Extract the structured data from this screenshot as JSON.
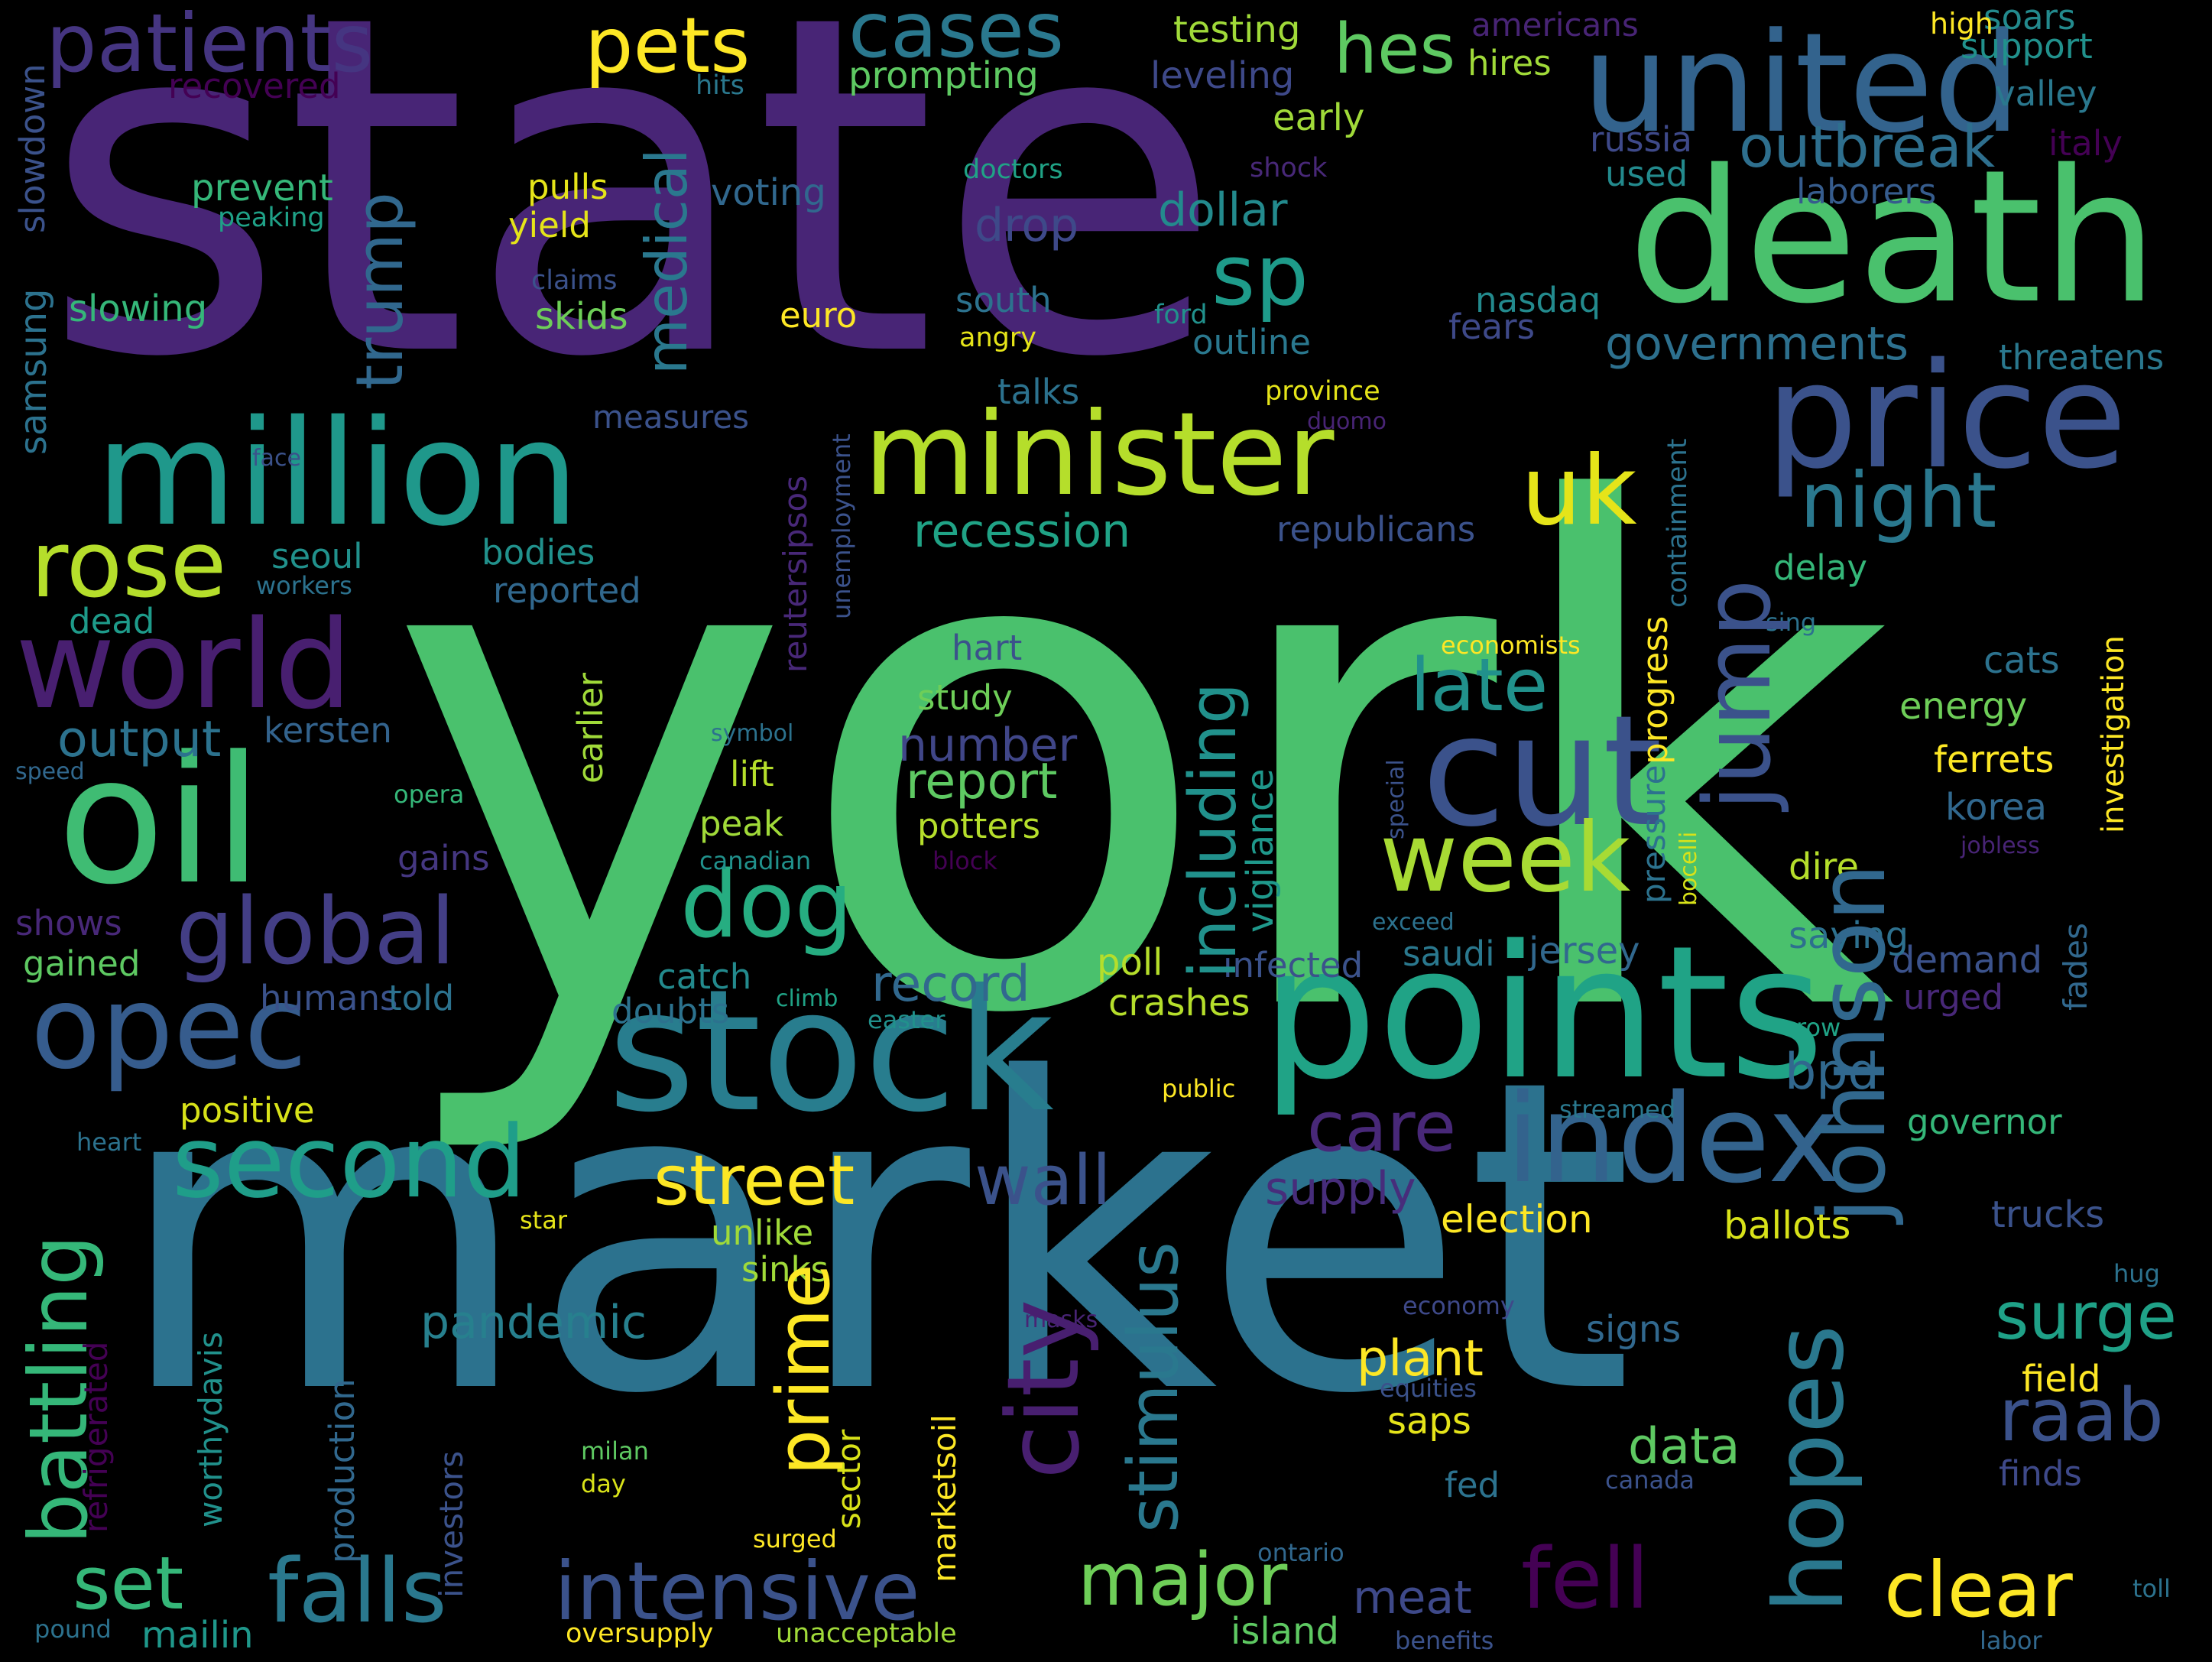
{
  "words": [
    {
      "text": "state",
      "color": "#482576",
      "vertical": false
    },
    {
      "text": "york",
      "color": "#4ac16d",
      "vertical": false
    },
    {
      "text": "market",
      "color": "#2c728e",
      "vertical": false
    },
    {
      "text": "death",
      "color": "#4ac16d",
      "vertical": false
    },
    {
      "text": "united",
      "color": "#33638d",
      "vertical": false
    },
    {
      "text": "price",
      "color": "#3b528b",
      "vertical": false
    },
    {
      "text": "points",
      "color": "#20a386",
      "vertical": false
    },
    {
      "text": "stock",
      "color": "#287d8e",
      "vertical": false
    },
    {
      "text": "million",
      "color": "#1f988b",
      "vertical": false
    },
    {
      "text": "minister",
      "color": "#b5de2b",
      "vertical": false
    },
    {
      "text": "oil",
      "color": "#3fbc73",
      "vertical": false
    },
    {
      "text": "cut",
      "color": "#3b528b",
      "vertical": false
    },
    {
      "text": "index",
      "color": "#33638d",
      "vertical": false
    },
    {
      "text": "second",
      "color": "#1f9e89",
      "vertical": false
    },
    {
      "text": "world",
      "color": "#481f70",
      "vertical": false
    },
    {
      "text": "opec",
      "color": "#365c8d",
      "vertical": false
    },
    {
      "text": "global",
      "color": "#433e85",
      "vertical": false
    },
    {
      "text": "dog",
      "color": "#26ad81",
      "vertical": false
    },
    {
      "text": "rose",
      "color": "#b5de2b",
      "vertical": false
    },
    {
      "text": "patients",
      "color": "#453581",
      "vertical": false
    },
    {
      "text": "pets",
      "color": "#fde725",
      "vertical": false
    },
    {
      "text": "cases",
      "color": "#2a788e",
      "vertical": false
    },
    {
      "text": "hes",
      "color": "#5ec962",
      "vertical": false
    },
    {
      "text": "sp",
      "color": "#1e9b8a",
      "vertical": false
    },
    {
      "text": "uk",
      "color": "#e5e419",
      "vertical": false
    },
    {
      "text": "night",
      "color": "#2a788e",
      "vertical": false
    },
    {
      "text": "outbreak",
      "color": "#2e6f8e",
      "vertical": false
    },
    {
      "text": "week",
      "color": "#a8db34",
      "vertical": false
    },
    {
      "text": "late",
      "color": "#21918c",
      "vertical": false
    },
    {
      "text": "street",
      "color": "#fde725",
      "vertical": false
    },
    {
      "text": "wall",
      "color": "#3b528b",
      "vertical": false
    },
    {
      "text": "care",
      "color": "#482878",
      "vertical": false
    },
    {
      "text": "fell",
      "color": "#440154",
      "vertical": false
    },
    {
      "text": "falls",
      "color": "#2a788e",
      "vertical": false
    },
    {
      "text": "intensive",
      "color": "#3b528b",
      "vertical": false
    },
    {
      "text": "major",
      "color": "#6ece58",
      "vertical": false
    },
    {
      "text": "clear",
      "color": "#fde725",
      "vertical": false
    },
    {
      "text": "set",
      "color": "#35b779",
      "vertical": false
    },
    {
      "text": "surge",
      "color": "#1fa187",
      "vertical": false
    },
    {
      "text": "raab",
      "color": "#3b528b",
      "vertical": false
    },
    {
      "text": "report",
      "color": "#5ec962",
      "vertical": false
    },
    {
      "text": "record",
      "color": "#31688e",
      "vertical": false
    },
    {
      "text": "number",
      "color": "#404688",
      "vertical": false
    },
    {
      "text": "recession",
      "color": "#20a386",
      "vertical": false
    },
    {
      "text": "dollar",
      "color": "#238a8d",
      "vertical": false
    },
    {
      "text": "drop",
      "color": "#3e4989",
      "vertical": false
    },
    {
      "text": "governments",
      "color": "#2d708e",
      "vertical": false
    },
    {
      "text": "output",
      "color": "#2c728e",
      "vertical": false
    },
    {
      "text": "pandemic",
      "color": "#27808e",
      "vertical": false
    },
    {
      "text": "plant",
      "color": "#fde725",
      "vertical": false
    },
    {
      "text": "data",
      "color": "#5ec962",
      "vertical": false
    },
    {
      "text": "supply",
      "color": "#472d7b",
      "vertical": false
    },
    {
      "text": "meat",
      "color": "#3e4989",
      "vertical": false
    },
    {
      "text": "bpd",
      "color": "#31688e",
      "vertical": false
    },
    {
      "text": "mailin",
      "color": "#1f988b",
      "vertical": false
    },
    {
      "text": "unlike",
      "color": "#a0da39",
      "vertical": false
    },
    {
      "text": "sinks",
      "color": "#a0da39",
      "vertical": false
    },
    {
      "text": "election",
      "color": "#fde725",
      "vertical": false
    },
    {
      "text": "ballots",
      "color": "#d8e219",
      "vertical": false
    },
    {
      "text": "trucks",
      "color": "#3b528b",
      "vertical": false
    },
    {
      "text": "field",
      "color": "#fde725",
      "vertical": false
    },
    {
      "text": "signs",
      "color": "#31688e",
      "vertical": false
    },
    {
      "text": "saps",
      "color": "#e5e419",
      "vertical": false
    },
    {
      "text": "fed",
      "color": "#2c728e",
      "vertical": false
    },
    {
      "text": "island",
      "color": "#5ec962",
      "vertical": false
    },
    {
      "text": "finds",
      "color": "#3e4989",
      "vertical": false
    },
    {
      "text": "crashes",
      "color": "#b5de2b",
      "vertical": false
    },
    {
      "text": "poll",
      "color": "#b5de2b",
      "vertical": false
    },
    {
      "text": "infected",
      "color": "#3b528b",
      "vertical": false
    },
    {
      "text": "saudi",
      "color": "#2a788e",
      "vertical": false
    },
    {
      "text": "jersey",
      "color": "#31688e",
      "vertical": false
    },
    {
      "text": "demand",
      "color": "#3b528b",
      "vertical": false
    },
    {
      "text": "urged",
      "color": "#482878",
      "vertical": false
    },
    {
      "text": "saying",
      "color": "#2d708e",
      "vertical": false
    },
    {
      "text": "governor",
      "color": "#35b779",
      "vertical": false
    },
    {
      "text": "dire",
      "color": "#b5de2b",
      "vertical": false
    },
    {
      "text": "korea",
      "color": "#31688e",
      "vertical": false
    },
    {
      "text": "ferrets",
      "color": "#fde725",
      "vertical": false
    },
    {
      "text": "energy",
      "color": "#6ece58",
      "vertical": false
    },
    {
      "text": "cats",
      "color": "#2c728e",
      "vertical": false
    },
    {
      "text": "delay",
      "color": "#35b779",
      "vertical": false
    },
    {
      "text": "threatens",
      "color": "#2a788e",
      "vertical": false
    },
    {
      "text": "valley",
      "color": "#2a788e",
      "vertical": false
    },
    {
      "text": "italy",
      "color": "#440154",
      "vertical": false
    },
    {
      "text": "support",
      "color": "#21918c",
      "vertical": false
    },
    {
      "text": "soars",
      "color": "#238a8d",
      "vertical": false
    },
    {
      "text": "high",
      "color": "#fde725",
      "vertical": false
    },
    {
      "text": "laborers",
      "color": "#365c8d",
      "vertical": false
    },
    {
      "text": "used",
      "color": "#238a8d",
      "vertical": false
    },
    {
      "text": "russia",
      "color": "#3e4989",
      "vertical": false
    },
    {
      "text": "hires",
      "color": "#a0da39",
      "vertical": false
    },
    {
      "text": "americans",
      "color": "#482475",
      "vertical": false
    },
    {
      "text": "testing",
      "color": "#a0da39",
      "vertical": false
    },
    {
      "text": "leveling",
      "color": "#3e4989",
      "vertical": false
    },
    {
      "text": "prompting",
      "color": "#5ec962",
      "vertical": false
    },
    {
      "text": "early",
      "color": "#a0da39",
      "vertical": false
    },
    {
      "text": "hits",
      "color": "#2a788e",
      "vertical": false
    },
    {
      "text": "recovered",
      "color": "#440154",
      "vertical": false
    },
    {
      "text": "prevent",
      "color": "#35b779",
      "vertical": false
    },
    {
      "text": "peaking",
      "color": "#1fa187",
      "vertical": false
    },
    {
      "text": "pulls",
      "color": "#e5e419",
      "vertical": false
    },
    {
      "text": "yield",
      "color": "#e5e419",
      "vertical": false
    },
    {
      "text": "voting",
      "color": "#31688e",
      "vertical": false
    },
    {
      "text": "doctors",
      "color": "#20a386",
      "vertical": false
    },
    {
      "text": "shock",
      "color": "#482878",
      "vertical": false
    },
    {
      "text": "claims",
      "color": "#3b528b",
      "vertical": false
    },
    {
      "text": "skids",
      "color": "#6ece58",
      "vertical": false
    },
    {
      "text": "euro",
      "color": "#fde725",
      "vertical": false
    },
    {
      "text": "south",
      "color": "#2c728e",
      "vertical": false
    },
    {
      "text": "ford",
      "color": "#21918c",
      "vertical": false
    },
    {
      "text": "angry",
      "color": "#e5e419",
      "vertical": false
    },
    {
      "text": "nasdaq",
      "color": "#238a8d",
      "vertical": false
    },
    {
      "text": "fears",
      "color": "#3e4989",
      "vertical": false
    },
    {
      "text": "outline",
      "color": "#2a788e",
      "vertical": false
    },
    {
      "text": "slowing",
      "color": "#35b779",
      "vertical": false
    },
    {
      "text": "talks",
      "color": "#2c728e",
      "vertical": false
    },
    {
      "text": "province",
      "color": "#e5e419",
      "vertical": false
    },
    {
      "text": "duomo",
      "color": "#482475",
      "vertical": false
    },
    {
      "text": "measures",
      "color": "#3b528b",
      "vertical": false
    },
    {
      "text": "face",
      "color": "#3b528b",
      "vertical": false
    },
    {
      "text": "seoul",
      "color": "#21918c",
      "vertical": false
    },
    {
      "text": "bodies",
      "color": "#21918c",
      "vertical": false
    },
    {
      "text": "reported",
      "color": "#31688e",
      "vertical": false
    },
    {
      "text": "workers",
      "color": "#2c728e",
      "vertical": false
    },
    {
      "text": "dead",
      "color": "#1e9b8a",
      "vertical": false
    },
    {
      "text": "republicans",
      "color": "#3b528b",
      "vertical": false
    },
    {
      "text": "economists",
      "color": "#fde725",
      "vertical": false
    },
    {
      "text": "sing",
      "color": "#2c728e",
      "vertical": false
    },
    {
      "text": "hart",
      "color": "#3b528b",
      "vertical": false
    },
    {
      "text": "study",
      "color": "#6ece58",
      "vertical": false
    },
    {
      "text": "kersten",
      "color": "#33638d",
      "vertical": false
    },
    {
      "text": "symbol",
      "color": "#2c728e",
      "vertical": false
    },
    {
      "text": "lift",
      "color": "#b5de2b",
      "vertical": false
    },
    {
      "text": "speed",
      "color": "#31688e",
      "vertical": false
    },
    {
      "text": "opera",
      "color": "#35b779",
      "vertical": false
    },
    {
      "text": "peak",
      "color": "#a0da39",
      "vertical": false
    },
    {
      "text": "potters",
      "color": "#b5de2b",
      "vertical": false
    },
    {
      "text": "canadian",
      "color": "#21918c",
      "vertical": false
    },
    {
      "text": "block",
      "color": "#440154",
      "vertical": false
    },
    {
      "text": "gains",
      "color": "#453781",
      "vertical": false
    },
    {
      "text": "shows",
      "color": "#482878",
      "vertical": false
    },
    {
      "text": "gained",
      "color": "#5ec962",
      "vertical": false
    },
    {
      "text": "catch",
      "color": "#238a8d",
      "vertical": false
    },
    {
      "text": "doubts",
      "color": "#2c728e",
      "vertical": false
    },
    {
      "text": "climb",
      "color": "#20a386",
      "vertical": false
    },
    {
      "text": "easter",
      "color": "#21918c",
      "vertical": false
    },
    {
      "text": "humans",
      "color": "#3b528b",
      "vertical": false
    },
    {
      "text": "told",
      "color": "#2c728e",
      "vertical": false
    },
    {
      "text": "positive",
      "color": "#d8e219",
      "vertical": false
    },
    {
      "text": "heart",
      "color": "#2c728e",
      "vertical": false
    },
    {
      "text": "public",
      "color": "#fde725",
      "vertical": false
    },
    {
      "text": "streamed",
      "color": "#2a788e",
      "vertical": false
    },
    {
      "text": "exceed",
      "color": "#2c728e",
      "vertical": false
    },
    {
      "text": "jobless",
      "color": "#482475",
      "vertical": false
    },
    {
      "text": "row",
      "color": "#20a386",
      "vertical": false
    },
    {
      "text": "star",
      "color": "#e5e419",
      "vertical": false
    },
    {
      "text": "economy",
      "color": "#3e4989",
      "vertical": false
    },
    {
      "text": "masks",
      "color": "#482475",
      "vertical": false
    },
    {
      "text": "equities",
      "color": "#3b528b",
      "vertical": false
    },
    {
      "text": "hug",
      "color": "#2c728e",
      "vertical": false
    },
    {
      "text": "milan",
      "color": "#5ec962",
      "vertical": false
    },
    {
      "text": "day",
      "color": "#d8e219",
      "vertical": false
    },
    {
      "text": "canada",
      "color": "#3b528b",
      "vertical": false
    },
    {
      "text": "surged",
      "color": "#fde725",
      "vertical": false
    },
    {
      "text": "ontario",
      "color": "#31688e",
      "vertical": false
    },
    {
      "text": "pound",
      "color": "#2c728e",
      "vertical": false
    },
    {
      "text": "oversupply",
      "color": "#fde725",
      "vertical": false
    },
    {
      "text": "unacceptable",
      "color": "#a0da39",
      "vertical": false
    },
    {
      "text": "benefits",
      "color": "#3b528b",
      "vertical": false
    },
    {
      "text": "labor",
      "color": "#31688e",
      "vertical": false
    },
    {
      "text": "toll",
      "color": "#2c728e",
      "vertical": false
    },
    {
      "text": "johnson",
      "color": "#31688e",
      "vertical": true
    },
    {
      "text": "jump",
      "color": "#3b528b",
      "vertical": true
    },
    {
      "text": "city",
      "color": "#481f70",
      "vertical": true
    },
    {
      "text": "hopes",
      "color": "#2a788e",
      "vertical": true
    },
    {
      "text": "battling",
      "color": "#35b779",
      "vertical": true
    },
    {
      "text": "including",
      "color": "#21918c",
      "vertical": true
    },
    {
      "text": "stimulus",
      "color": "#2a788e",
      "vertical": true
    },
    {
      "text": "prime",
      "color": "#fde725",
      "vertical": true
    },
    {
      "text": "trump",
      "color": "#31688e",
      "vertical": true
    },
    {
      "text": "medical",
      "color": "#2a788e",
      "vertical": true
    },
    {
      "text": "vigilance",
      "color": "#1f988b",
      "vertical": true
    },
    {
      "text": "worthydavis",
      "color": "#21918c",
      "vertical": true
    },
    {
      "text": "production",
      "color": "#31688e",
      "vertical": true
    },
    {
      "text": "investors",
      "color": "#3b528b",
      "vertical": true
    },
    {
      "text": "refrigerated",
      "color": "#440154",
      "vertical": true
    },
    {
      "text": "samsung",
      "color": "#2c728e",
      "vertical": true
    },
    {
      "text": "slowdown",
      "color": "#3b528b",
      "vertical": true
    },
    {
      "text": "reutersipsos",
      "color": "#482878",
      "vertical": true
    },
    {
      "text": "unemployment",
      "color": "#3b528b",
      "vertical": true
    },
    {
      "text": "earlier",
      "color": "#a0da39",
      "vertical": true
    },
    {
      "text": "marketsoil",
      "color": "#fde725",
      "vertical": true
    },
    {
      "text": "sector",
      "color": "#d8e219",
      "vertical": true
    },
    {
      "text": "progress",
      "color": "#fde725",
      "vertical": true
    },
    {
      "text": "pressure",
      "color": "#2c728e",
      "vertical": true
    },
    {
      "text": "containment",
      "color": "#2c728e",
      "vertical": true
    },
    {
      "text": "bocelli",
      "color": "#d8e219",
      "vertical": true
    },
    {
      "text": "special",
      "color": "#3b528b",
      "vertical": true
    },
    {
      "text": "investigation",
      "color": "#fde725",
      "vertical": true
    },
    {
      "text": "fades",
      "color": "#31688e",
      "vertical": true
    }
  ]
}
